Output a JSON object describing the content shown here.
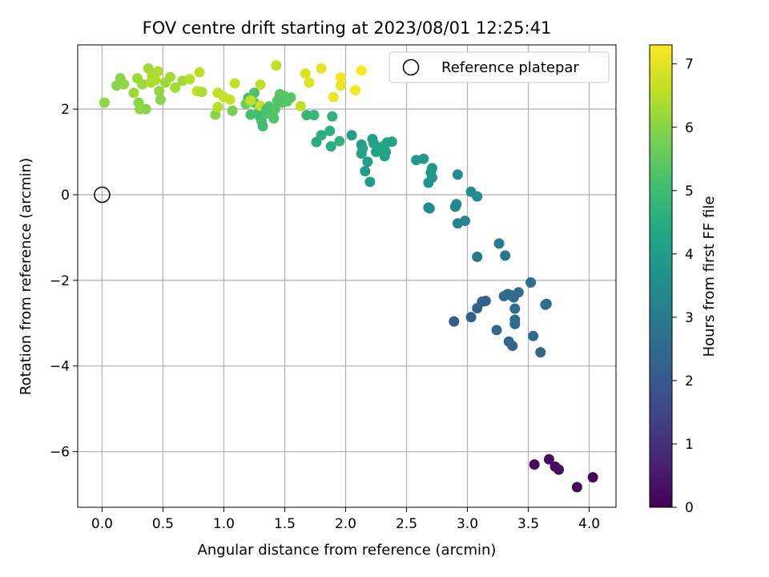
{
  "chart_data": {
    "type": "scatter",
    "title": "FOV centre drift starting at 2023/08/01 12:25:41",
    "xlabel": "Angular distance from reference (arcmin)",
    "ylabel": "Rotation from reference (arcmin)",
    "xlim": [
      -0.2,
      4.22
    ],
    "ylim": [
      -7.3,
      3.5
    ],
    "x_ticks": [
      "0.0",
      "0.5",
      "1.0",
      "1.5",
      "2.0",
      "2.5",
      "3.0",
      "3.5",
      "4.0"
    ],
    "y_ticks": [
      "−6",
      "−4",
      "−2",
      "0",
      "2"
    ],
    "grid": true,
    "legend": {
      "placement": "upper right",
      "entries": [
        "Reference platepar"
      ]
    },
    "colorbar": {
      "label": "Hours from first FF file",
      "range": [
        0,
        7.3
      ],
      "colormap": "viridis",
      "ticks": [
        "0",
        "1",
        "2",
        "3",
        "4",
        "5",
        "6",
        "7"
      ]
    },
    "reference_point": {
      "name": "Reference platepar",
      "x": 0.0,
      "y": 0.0
    },
    "series": [
      {
        "points": [
          [
            3.55,
            -6.3,
            0.2
          ],
          [
            3.67,
            -6.18,
            0.25
          ],
          [
            3.72,
            -6.35,
            0.3
          ],
          [
            3.75,
            -6.42,
            0.3
          ],
          [
            3.9,
            -6.83,
            0.1
          ],
          [
            4.03,
            -6.6,
            0.15
          ],
          [
            2.89,
            -2.96,
            2.1
          ],
          [
            3.03,
            -2.86,
            2.2
          ],
          [
            3.08,
            -2.65,
            2.2
          ],
          [
            3.12,
            -2.5,
            2.3
          ],
          [
            3.15,
            -2.48,
            2.3
          ],
          [
            3.24,
            -3.16,
            2.4
          ],
          [
            3.3,
            -2.37,
            2.5
          ],
          [
            3.33,
            -2.32,
            2.5
          ],
          [
            3.36,
            -2.35,
            2.5
          ],
          [
            3.38,
            -2.4,
            2.6
          ],
          [
            3.34,
            -3.43,
            2.3
          ],
          [
            3.37,
            -3.53,
            2.4
          ],
          [
            3.39,
            -2.66,
            2.6
          ],
          [
            3.39,
            -2.92,
            2.6
          ],
          [
            3.39,
            -3.02,
            2.6
          ],
          [
            3.42,
            -2.28,
            2.6
          ],
          [
            3.52,
            -2.05,
            2.7
          ],
          [
            3.54,
            -3.3,
            2.5
          ],
          [
            3.6,
            -3.68,
            2.4
          ],
          [
            3.64,
            -2.57,
            2.7
          ],
          [
            3.65,
            -2.55,
            2.7
          ],
          [
            3.08,
            -1.45,
            2.9
          ],
          [
            3.26,
            -1.14,
            3.0
          ],
          [
            3.31,
            -1.42,
            2.9
          ],
          [
            2.9,
            -0.28,
            3.4
          ],
          [
            2.91,
            -0.22,
            3.4
          ],
          [
            2.92,
            -0.67,
            3.2
          ],
          [
            2.98,
            -0.61,
            3.2
          ],
          [
            2.92,
            0.47,
            3.5
          ],
          [
            3.03,
            0.07,
            3.5
          ],
          [
            3.08,
            -0.04,
            3.5
          ],
          [
            2.68,
            -0.3,
            3.5
          ],
          [
            2.69,
            -0.32,
            3.5
          ],
          [
            2.58,
            0.81,
            3.8
          ],
          [
            2.64,
            0.84,
            3.9
          ],
          [
            2.68,
            0.28,
            3.7
          ],
          [
            2.7,
            0.52,
            3.8
          ],
          [
            2.71,
            0.62,
            3.9
          ],
          [
            2.71,
            0.4,
            3.8
          ],
          [
            2.05,
            1.39,
            4.1
          ],
          [
            2.13,
            1.17,
            4.1
          ],
          [
            2.13,
            0.96,
            4.2
          ],
          [
            2.14,
            1.08,
            4.2
          ],
          [
            2.16,
            0.55,
            4.0
          ],
          [
            2.18,
            0.77,
            4.1
          ],
          [
            2.2,
            0.3,
            4.0
          ],
          [
            2.22,
            1.3,
            4.2
          ],
          [
            2.23,
            1.2,
            4.2
          ],
          [
            2.25,
            1.0,
            4.2
          ],
          [
            2.3,
            1.12,
            4.3
          ],
          [
            2.32,
            0.9,
            4.2
          ],
          [
            2.33,
            1.0,
            4.3
          ],
          [
            2.34,
            1.22,
            4.3
          ],
          [
            2.38,
            1.24,
            4.3
          ],
          [
            1.76,
            1.23,
            4.5
          ],
          [
            1.8,
            1.39,
            4.6
          ],
          [
            1.87,
            1.49,
            4.6
          ],
          [
            1.88,
            1.13,
            4.5
          ],
          [
            1.89,
            1.83,
            4.7
          ],
          [
            1.95,
            1.25,
            4.7
          ],
          [
            1.68,
            1.86,
            4.8
          ],
          [
            1.74,
            1.86,
            4.8
          ],
          [
            1.2,
            2.26,
            5.2
          ],
          [
            1.22,
            1.87,
            5.1
          ],
          [
            1.25,
            2.38,
            5.2
          ],
          [
            1.28,
            1.9,
            5.1
          ],
          [
            1.3,
            1.8,
            5.0
          ],
          [
            1.31,
            1.72,
            5.1
          ],
          [
            1.32,
            1.6,
            5.0
          ],
          [
            1.35,
            1.9,
            5.2
          ],
          [
            1.37,
            2.06,
            5.2
          ],
          [
            1.38,
            1.95,
            5.3
          ],
          [
            1.4,
            1.86,
            5.3
          ],
          [
            1.41,
            1.78,
            5.3
          ],
          [
            1.42,
            2.0,
            5.3
          ],
          [
            1.44,
            2.2,
            5.3
          ],
          [
            1.46,
            2.35,
            5.4
          ],
          [
            1.48,
            2.15,
            5.4
          ],
          [
            1.5,
            2.3,
            5.4
          ],
          [
            1.52,
            2.18,
            5.4
          ],
          [
            1.55,
            2.27,
            5.4
          ],
          [
            1.25,
            2.15,
            5.4
          ],
          [
            1.07,
            1.96,
            5.8
          ],
          [
            1.18,
            2.12,
            5.7
          ],
          [
            0.02,
            2.15,
            6.1
          ],
          [
            0.12,
            2.55,
            6.0
          ],
          [
            0.15,
            2.72,
            6.0
          ],
          [
            0.18,
            2.58,
            6.1
          ],
          [
            0.26,
            2.38,
            6.2
          ],
          [
            0.29,
            2.72,
            6.2
          ],
          [
            0.3,
            2.15,
            6.0
          ],
          [
            0.31,
            2.0,
            6.1
          ],
          [
            0.33,
            2.58,
            6.2
          ],
          [
            0.36,
            2.0,
            6.0
          ],
          [
            0.38,
            2.95,
            6.3
          ],
          [
            0.4,
            2.62,
            6.4
          ],
          [
            0.41,
            2.77,
            6.4
          ],
          [
            0.44,
            2.68,
            6.4
          ],
          [
            0.46,
            2.88,
            6.4
          ],
          [
            0.47,
            2.42,
            6.1
          ],
          [
            0.48,
            2.22,
            6.0
          ],
          [
            0.52,
            2.62,
            6.2
          ],
          [
            0.56,
            2.75,
            6.3
          ],
          [
            0.6,
            2.5,
            6.3
          ],
          [
            0.66,
            2.66,
            6.3
          ],
          [
            0.72,
            2.7,
            6.5
          ],
          [
            0.78,
            2.42,
            6.6
          ],
          [
            0.8,
            2.86,
            6.6
          ],
          [
            0.82,
            2.4,
            6.4
          ],
          [
            0.93,
            1.87,
            6.0
          ],
          [
            0.95,
            2.38,
            6.6
          ],
          [
            0.95,
            2.05,
            6.5
          ],
          [
            1.0,
            2.28,
            6.7
          ],
          [
            1.05,
            2.22,
            6.7
          ],
          [
            1.09,
            2.6,
            6.6
          ],
          [
            1.22,
            2.2,
            6.6
          ],
          [
            1.3,
            2.08,
            6.7
          ],
          [
            1.3,
            2.57,
            6.6
          ],
          [
            1.43,
            3.02,
            6.6
          ],
          [
            1.63,
            2.07,
            6.6
          ],
          [
            1.67,
            2.83,
            6.9
          ],
          [
            1.7,
            2.62,
            6.9
          ],
          [
            1.8,
            2.95,
            7.0
          ],
          [
            1.9,
            2.28,
            7.1
          ],
          [
            1.96,
            2.74,
            7.2
          ],
          [
            1.96,
            2.55,
            7.1
          ],
          [
            2.08,
            2.44,
            7.2
          ],
          [
            2.13,
            2.9,
            7.3
          ],
          [
            1.45,
            2.2,
            5.3
          ],
          [
            1.35,
            2.0,
            5.2
          ]
        ]
      }
    ]
  }
}
